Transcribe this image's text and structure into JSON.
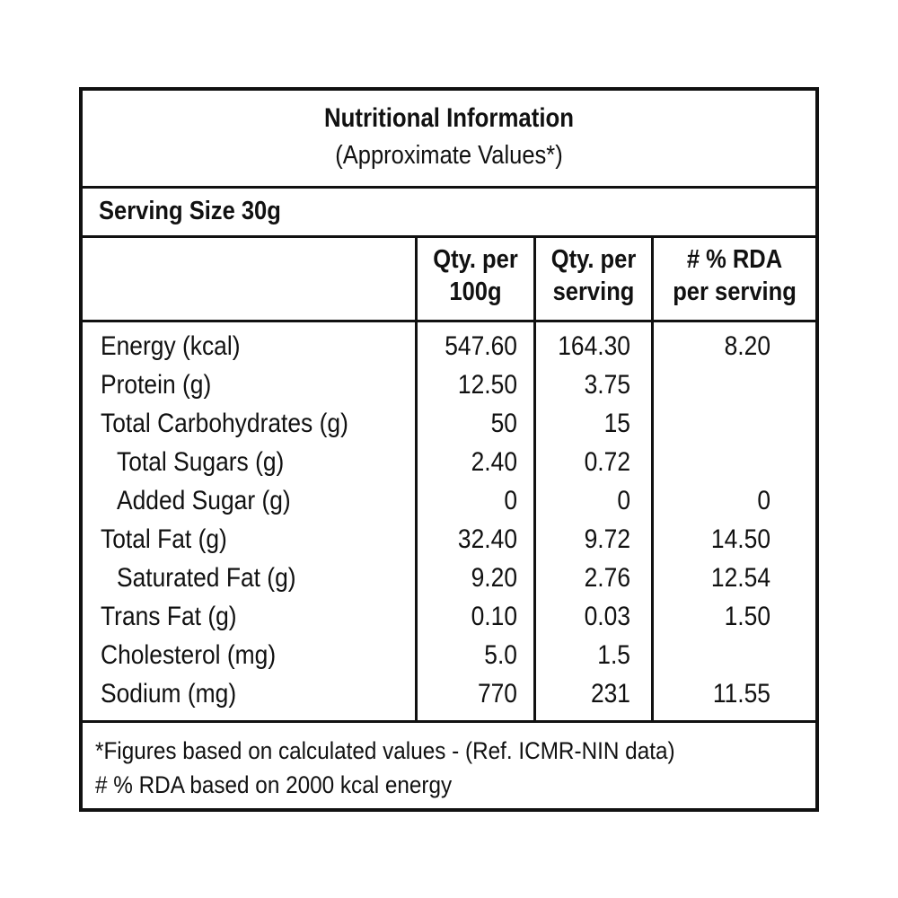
{
  "panel": {
    "title": "Nutritional Information",
    "subtitle": "(Approximate Values*)",
    "serving_size": "Serving Size 30g"
  },
  "columns": [
    {
      "line1": "Qty. per",
      "line2": "100g"
    },
    {
      "line1": "Qty. per",
      "line2": "serving"
    },
    {
      "line1": "# % RDA",
      "line2": "per serving"
    }
  ],
  "rows": [
    {
      "label": "Energy (kcal)",
      "per100": "547.60",
      "perServing": "164.30",
      "rda": "8.20"
    },
    {
      "label": "Protein (g)",
      "per100": "12.50",
      "perServing": "3.75",
      "rda": ""
    },
    {
      "label": "Total Carbohydrates (g)",
      "per100": "50",
      "perServing": "15",
      "rda": ""
    },
    {
      "label": "Total Sugars (g)",
      "per100": "2.40",
      "perServing": "0.72",
      "rda": ""
    },
    {
      "label": "Added Sugar (g)",
      "per100": "0",
      "perServing": "0",
      "rda": "0"
    },
    {
      "label": "Total Fat (g)",
      "per100": "32.40",
      "perServing": "9.72",
      "rda": "14.50"
    },
    {
      "label": "Saturated Fat (g)",
      "per100": "9.20",
      "perServing": "2.76",
      "rda": "12.54"
    },
    {
      "label": "Trans Fat (g)",
      "per100": "0.10",
      "perServing": "0.03",
      "rda": "1.50"
    },
    {
      "label": "Cholesterol (mg)",
      "per100": "5.0",
      "perServing": "1.5",
      "rda": ""
    },
    {
      "label": "Sodium (mg)",
      "per100": "770",
      "perServing": "231",
      "rda": "11.55"
    }
  ],
  "footer": {
    "note1": "*Figures based on calculated values - (Ref. ICMR-NIN data)",
    "note2": "# % RDA based on 2000 kcal energy"
  }
}
